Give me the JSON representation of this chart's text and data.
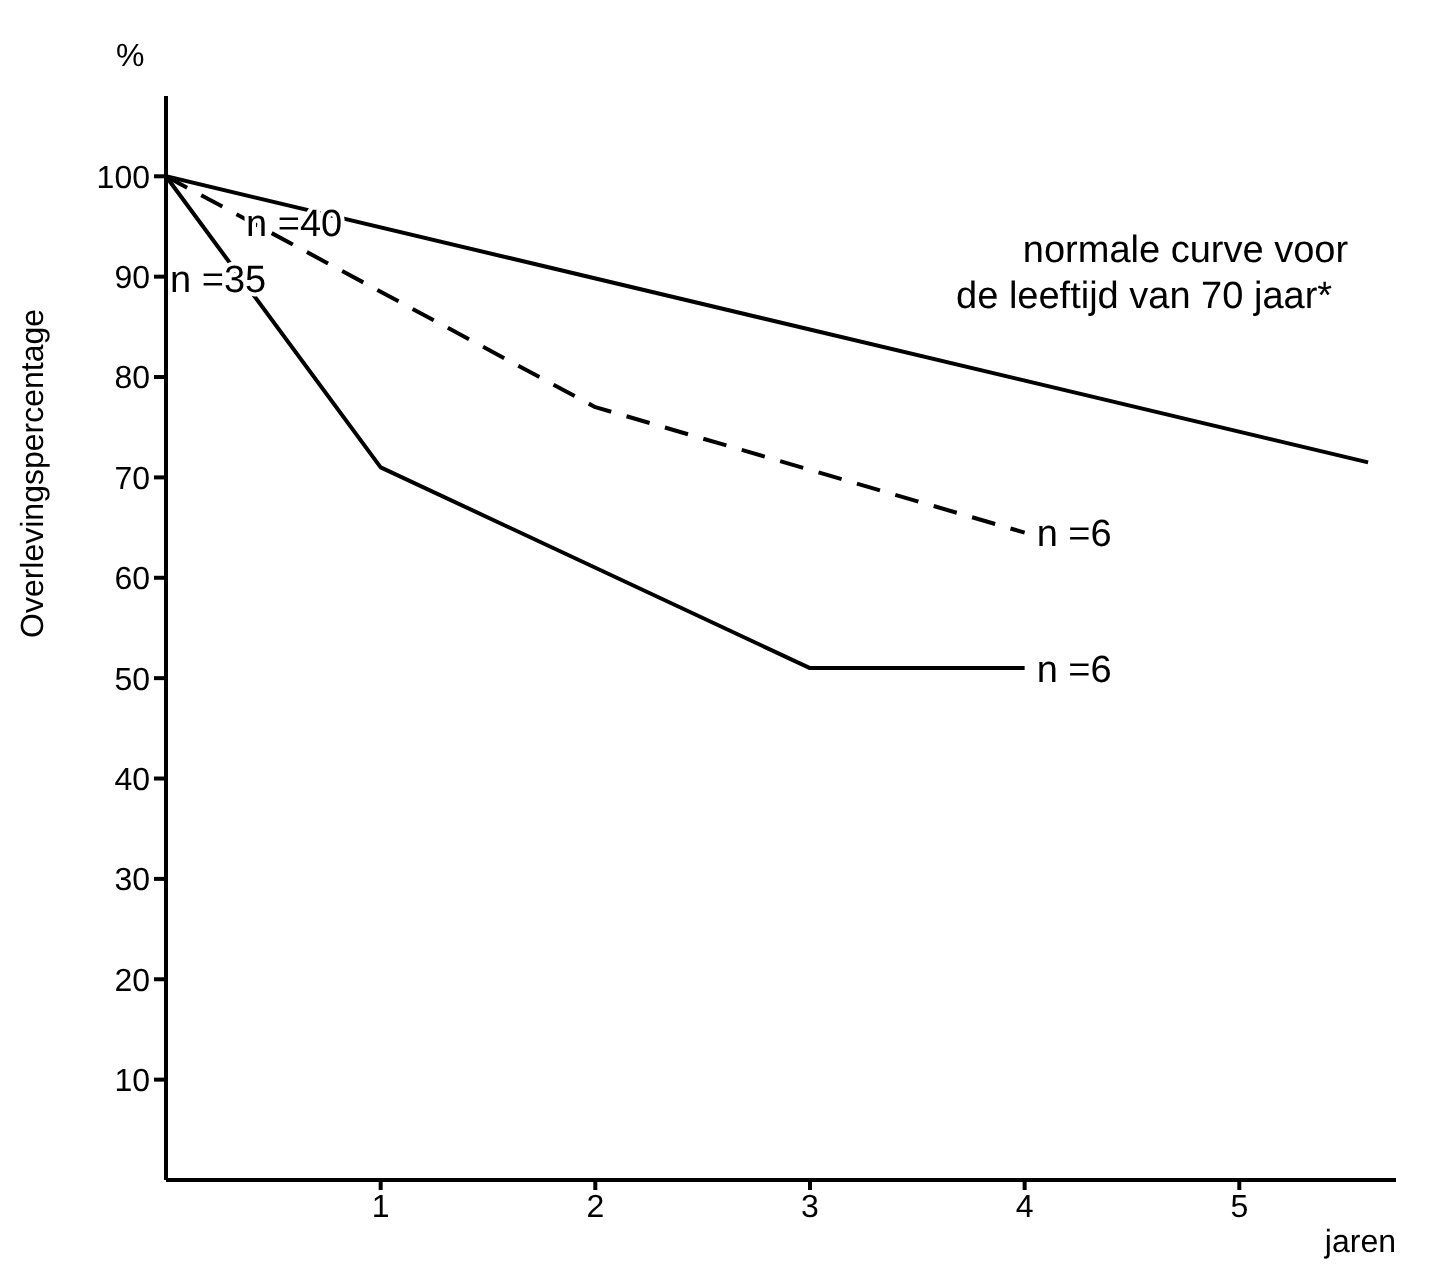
{
  "chart_data": {
    "type": "line",
    "ylabel": "Overlevingspercentage",
    "xlabel": "jaren",
    "series": [
      {
        "name": "normale curve voor de leeftijd van 70 jaar*",
        "color": "#000000",
        "x": [
          0,
          5.6
        ],
        "values": [
          100,
          71.5
        ],
        "line_style": "solid"
      },
      {
        "name": "n =40",
        "color": "#000000",
        "x": [
          0,
          2,
          4
        ],
        "values": [
          100,
          77,
          64.5
        ],
        "line_style": "dashed"
      },
      {
        "name": "n =35",
        "color": "#000000",
        "x": [
          0,
          1,
          3,
          4
        ],
        "values": [
          100,
          71,
          51,
          51
        ],
        "line_style": "solid"
      }
    ],
    "xlim": [
      0,
      5.73
    ],
    "xticks": [
      1,
      2,
      3,
      4,
      5
    ],
    "ylim": [
      0,
      108
    ],
    "yticks": [
      10,
      20,
      30,
      40,
      50,
      60,
      70,
      80,
      90,
      100
    ],
    "grid": false,
    "legend": false,
    "marker": "none",
    "annotations": [
      "%",
      {
        "text": "n =6",
        "x": 4,
        "y": 64.5
      },
      {
        "text": "n =6",
        "x": 4,
        "y": 51
      }
    ]
  }
}
